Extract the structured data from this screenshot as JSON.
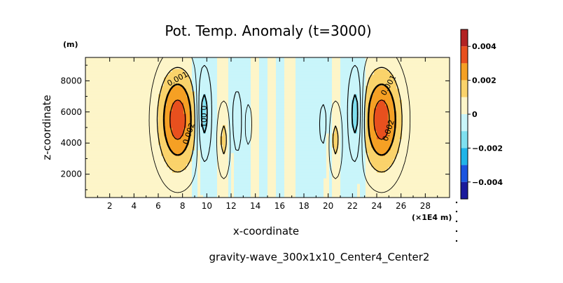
{
  "chart_data": {
    "type": "heatmap",
    "title": "Pot. Temp. Anomaly (t=3000)",
    "y_unit": "(m)",
    "xlabel": "x-coordinate",
    "ylabel": "z-coordinate",
    "x_scale_label": "(×1E4 m)",
    "caption": "gravity-wave_300x1x10_Center4_Center2",
    "xlim": [
      0,
      30
    ],
    "ylim": [
      500,
      9500
    ],
    "x_ticks": [
      2,
      4,
      6,
      8,
      10,
      12,
      14,
      16,
      18,
      20,
      22,
      24,
      26,
      28
    ],
    "x_tick_labels": [
      "2",
      "4",
      "6",
      "8",
      "10",
      "12",
      "14",
      "16",
      "18",
      "20",
      "22",
      "24",
      "26",
      "28"
    ],
    "y_ticks": [
      2000,
      4000,
      6000,
      8000
    ],
    "y_tick_labels": [
      "2000",
      "4000",
      "6000",
      "8000"
    ],
    "colorbar": {
      "range": [
        -0.005,
        0.005
      ],
      "bins": [
        {
          "from": 0.004,
          "to": 0.005,
          "color": "#b22222"
        },
        {
          "from": 0.003,
          "to": 0.004,
          "color": "#e8501e"
        },
        {
          "from": 0.002,
          "to": 0.003,
          "color": "#f5a024"
        },
        {
          "from": 0.001,
          "to": 0.002,
          "color": "#fad36b"
        },
        {
          "from": 0.0,
          "to": 0.001,
          "color": "#fdf5c9"
        },
        {
          "from": -0.001,
          "to": 0.0,
          "color": "#c9f5fa"
        },
        {
          "from": -0.002,
          "to": -0.001,
          "color": "#7fe0f0"
        },
        {
          "from": -0.003,
          "to": -0.002,
          "color": "#1fb4e8"
        },
        {
          "from": -0.004,
          "to": -0.003,
          "color": "#1a55e0"
        },
        {
          "from": -0.005,
          "to": -0.004,
          "color": "#1a1a9c"
        }
      ],
      "ticks": [
        0.004,
        0.002,
        0,
        -0.002,
        -0.004
      ],
      "tick_labels": [
        "0.004",
        "0.002",
        "0",
        "−0.002",
        "−0.004"
      ]
    },
    "sources": [
      {
        "name": "left-warm-core",
        "cx": 7.6,
        "cz": 5500,
        "sx": 1.05,
        "sz": 2100,
        "amp": 0.0036
      },
      {
        "name": "right-warm-core",
        "cx": 24.4,
        "cz": 5500,
        "sx": 1.05,
        "sz": 2100,
        "amp": 0.0036
      },
      {
        "name": "left-cold-1",
        "cx": 9.7,
        "cz": 5800,
        "sx": 0.42,
        "sz": 1900,
        "amp": -0.0017
      },
      {
        "name": "left-warm-2",
        "cx": 11.4,
        "cz": 4200,
        "sx": 0.35,
        "sz": 1500,
        "amp": 0.0012
      },
      {
        "name": "left-cold-2",
        "cx": 12.5,
        "cz": 5400,
        "sx": 0.3,
        "sz": 1400,
        "amp": -0.0008
      },
      {
        "name": "left-warm-3",
        "cx": 13.4,
        "cz": 5200,
        "sx": 0.3,
        "sz": 1300,
        "amp": 0.0005
      },
      {
        "name": "right-cold-2",
        "cx": 19.6,
        "cz": 5200,
        "sx": 0.3,
        "sz": 1300,
        "amp": -0.0005
      },
      {
        "name": "right-warm-2",
        "cx": 20.6,
        "cz": 4200,
        "sx": 0.35,
        "sz": 1500,
        "amp": 0.0012
      },
      {
        "name": "right-cold-1",
        "cx": 22.3,
        "cz": 5800,
        "sx": 0.42,
        "sz": 1900,
        "amp": -0.0017
      }
    ],
    "bands": [
      {
        "x0": 8.7,
        "x1": 9.2,
        "sign": -1
      },
      {
        "x0": 10.4,
        "x1": 10.8,
        "sign": -1
      },
      {
        "x0": 11.8,
        "x1": 12.1,
        "sign": -1
      },
      {
        "x0": 13.0,
        "x1": 13.5,
        "sign": -1
      },
      {
        "x0": 14.4,
        "x1": 15.0,
        "sign": -1
      },
      {
        "x0": 15.8,
        "x1": 16.3,
        "sign": -1
      },
      {
        "x0": 17.3,
        "x1": 17.9,
        "sign": -1
      },
      {
        "x0": 18.7,
        "x1": 19.1,
        "sign": -1
      },
      {
        "x0": 20.1,
        "x1": 20.3,
        "sign": -1
      },
      {
        "x0": 21.1,
        "x1": 21.5,
        "sign": -1
      },
      {
        "x0": 22.6,
        "x1": 23.1,
        "sign": -1
      }
    ],
    "contour_levels": {
      "positive": [
        0.001,
        0.002,
        0.003
      ],
      "thin_positive": [
        0.0003
      ],
      "negative": [
        -0.001,
        -0.0003
      ]
    },
    "contour_labels": [
      {
        "text": "0.001",
        "x": 7.6,
        "z": 8100,
        "angle": -28
      },
      {
        "text": "0.002",
        "x": 8.55,
        "z": 4600,
        "angle": -72
      },
      {
        "text": "0.001",
        "x": 9.7,
        "z": 5700,
        "angle": 90
      },
      {
        "text": "0.001",
        "x": 25.0,
        "z": 7700,
        "angle": -60
      },
      {
        "text": "0.002",
        "x": 25.0,
        "z": 4800,
        "angle": -72
      }
    ]
  }
}
